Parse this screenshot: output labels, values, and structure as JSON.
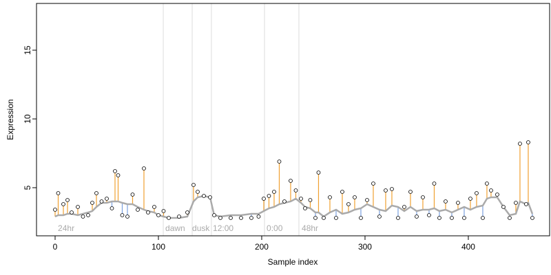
{
  "chart_data": {
    "type": "stem",
    "xlabel": "Sample index",
    "ylabel": "Expression",
    "xlim": [
      -18,
      478.7
    ],
    "ylim": [
      1.5,
      18.4
    ],
    "xticks": [
      0,
      100,
      200,
      300,
      400
    ],
    "yticks": [
      5,
      10,
      15
    ],
    "x": [
      0,
      3,
      8,
      12,
      16,
      22,
      27,
      32,
      36,
      40,
      45,
      50,
      55,
      58,
      61,
      65,
      70,
      75,
      80,
      86,
      90,
      96,
      100,
      105,
      110,
      120,
      128,
      134,
      138,
      144,
      150,
      154,
      160,
      170,
      180,
      190,
      197,
      202,
      207,
      212,
      217,
      222,
      228,
      233,
      238,
      242,
      247,
      252,
      255,
      260,
      266,
      272,
      278,
      284,
      290,
      296,
      302,
      308,
      314,
      320,
      326,
      332,
      338,
      344,
      350,
      356,
      362,
      367,
      372,
      378,
      384,
      390,
      396,
      402,
      408,
      414,
      418,
      422,
      428,
      434,
      440,
      446,
      450,
      456,
      458,
      462
    ],
    "values": [
      3.4,
      4.6,
      3.8,
      4.1,
      3.2,
      3.6,
      2.9,
      3.0,
      3.9,
      4.6,
      4.0,
      4.2,
      3.5,
      6.2,
      5.9,
      3.0,
      2.9,
      4.5,
      3.4,
      6.4,
      3.2,
      3.6,
      3.0,
      3.3,
      2.8,
      2.9,
      3.2,
      5.2,
      4.7,
      4.4,
      4.3,
      3.0,
      2.8,
      2.8,
      2.8,
      2.8,
      2.9,
      4.2,
      4.4,
      4.7,
      6.9,
      4.0,
      5.5,
      4.8,
      4.2,
      3.5,
      4.1,
      2.8,
      6.1,
      2.8,
      4.3,
      2.8,
      4.7,
      3.8,
      4.3,
      2.8,
      4.1,
      5.3,
      2.9,
      4.8,
      4.9,
      2.8,
      3.6,
      4.7,
      2.9,
      4.3,
      3.0,
      5.3,
      2.8,
      4.0,
      2.8,
      3.9,
      2.8,
      4.2,
      4.6,
      2.8,
      5.3,
      4.8,
      4.5,
      3.6,
      2.8,
      3.9,
      8.2,
      3.8,
      8.3,
      2.8
    ],
    "baseline": [
      2.9,
      3.0,
      3.0,
      3.1,
      3.1,
      3.0,
      3.1,
      3.2,
      3.3,
      3.6,
      3.9,
      3.9,
      4.0,
      4.0,
      4.0,
      3.9,
      3.8,
      3.8,
      3.6,
      3.4,
      3.3,
      3.2,
      3.0,
      2.9,
      2.8,
      2.8,
      2.9,
      4.0,
      4.3,
      4.4,
      4.3,
      3.0,
      2.9,
      3.0,
      3.0,
      3.1,
      3.1,
      3.3,
      3.5,
      3.6,
      3.8,
      3.9,
      4.0,
      4.2,
      3.9,
      3.6,
      3.5,
      3.2,
      3.2,
      2.9,
      3.2,
      3.4,
      3.1,
      3.2,
      3.4,
      3.5,
      3.8,
      3.6,
      3.4,
      3.3,
      3.7,
      3.6,
      3.3,
      3.6,
      3.3,
      3.4,
      3.4,
      3.5,
      3.3,
      3.4,
      3.2,
      3.4,
      3.6,
      3.4,
      3.6,
      3.7,
      4.2,
      4.3,
      4.3,
      3.6,
      3.0,
      3.1,
      4.0,
      3.8,
      3.9,
      3.1
    ],
    "baseline_color": "#aaaaaa",
    "above_color": "#f0a030",
    "below_color": "#7aa0e0",
    "vlines": [
      104.7,
      132.7,
      151.3,
      202.7,
      236
    ],
    "annotations": [
      {
        "x": 2.7,
        "label": "24hr"
      },
      {
        "x": 106.7,
        "label": "dawn"
      },
      {
        "x": 132.7,
        "label": "dusk"
      },
      {
        "x": 152.7,
        "label": "12:00"
      },
      {
        "x": 204.7,
        "label": "0:00"
      },
      {
        "x": 238.7,
        "label": "48hr"
      }
    ],
    "annotation_y": 2.0
  }
}
